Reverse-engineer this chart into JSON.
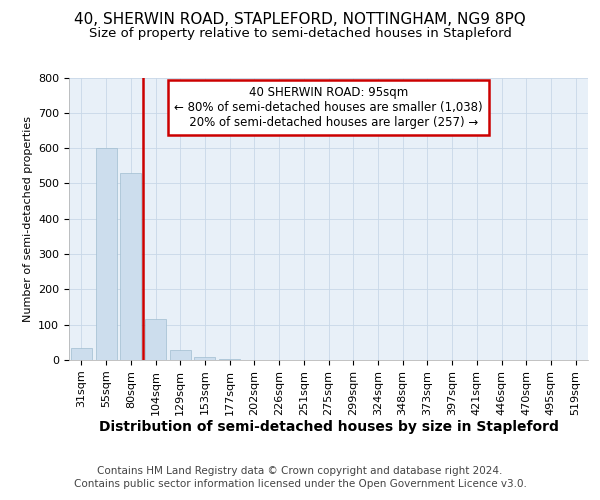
{
  "title": "40, SHERWIN ROAD, STAPLEFORD, NOTTINGHAM, NG9 8PQ",
  "subtitle": "Size of property relative to semi-detached houses in Stapleford",
  "xlabel": "Distribution of semi-detached houses by size in Stapleford",
  "ylabel": "Number of semi-detached properties",
  "categories": [
    "31sqm",
    "55sqm",
    "80sqm",
    "104sqm",
    "129sqm",
    "153sqm",
    "177sqm",
    "202sqm",
    "226sqm",
    "251sqm",
    "275sqm",
    "299sqm",
    "324sqm",
    "348sqm",
    "373sqm",
    "397sqm",
    "421sqm",
    "446sqm",
    "470sqm",
    "495sqm",
    "519sqm"
  ],
  "values": [
    35,
    600,
    530,
    115,
    27,
    8,
    3,
    0,
    0,
    0,
    0,
    0,
    0,
    0,
    0,
    0,
    0,
    0,
    0,
    0,
    0
  ],
  "bar_color": "#ccdded",
  "bar_edge_color": "#a0bdd0",
  "vline_color": "#cc0000",
  "annotation_box_text": "40 SHERWIN ROAD: 95sqm\n← 80% of semi-detached houses are smaller (1,038)\n   20% of semi-detached houses are larger (257) →",
  "annotation_box_color": "#cc0000",
  "annotation_box_bg": "#ffffff",
  "ylim": [
    0,
    800
  ],
  "yticks": [
    0,
    100,
    200,
    300,
    400,
    500,
    600,
    700,
    800
  ],
  "grid_color": "#c8d8e8",
  "background_color": "#e8f0f8",
  "footer_line1": "Contains HM Land Registry data © Crown copyright and database right 2024.",
  "footer_line2": "Contains public sector information licensed under the Open Government Licence v3.0.",
  "title_fontsize": 11,
  "subtitle_fontsize": 9.5,
  "xlabel_fontsize": 10,
  "ylabel_fontsize": 8,
  "tick_fontsize": 8,
  "footer_fontsize": 7.5,
  "annot_fontsize": 8.5
}
